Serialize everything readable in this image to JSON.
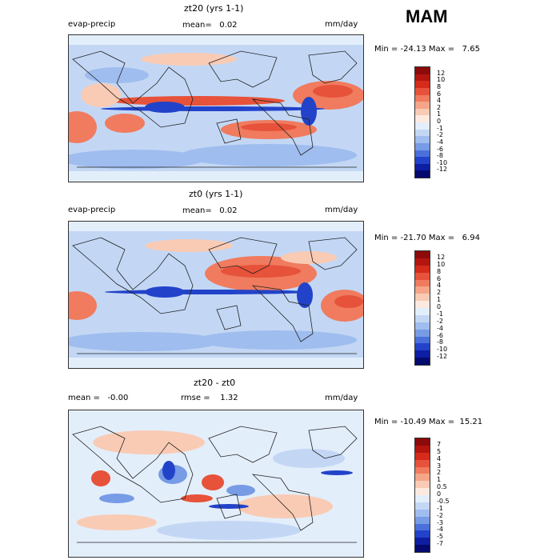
{
  "season": "MAM",
  "panels": [
    {
      "title": "zt20 (yrs 1-1)",
      "left_label": "evap-precip",
      "center_label": "mean=   0.02",
      "units": "mm/day",
      "minmax": "Min = -24.13 Max =   7.65",
      "colorbar_labels": [
        "12",
        "10",
        "8",
        "6",
        "4",
        "2",
        "1",
        "0",
        "-1",
        "-2",
        "-4",
        "-6",
        "-8",
        "-10",
        "-12"
      ],
      "colors": [
        "#8c0a0a",
        "#b3160f",
        "#d42b1b",
        "#e7523a",
        "#f07b5e",
        "#f5a588",
        "#f9cbb4",
        "#fde9df",
        "#e3eefb",
        "#c3d7f5",
        "#9fbdee",
        "#779be5",
        "#4b70dc",
        "#2243c9",
        "#0d1ea3",
        "#050a6e"
      ]
    },
    {
      "title": "zt0 (yrs 1-1)",
      "left_label": "evap-precip",
      "center_label": "mean=   0.02",
      "units": "mm/day",
      "minmax": "Min = -21.70 Max =   6.94",
      "colorbar_labels": [
        "12",
        "10",
        "8",
        "6",
        "4",
        "2",
        "1",
        "0",
        "-1",
        "-2",
        "-4",
        "-6",
        "-8",
        "-10",
        "-12"
      ],
      "colors": [
        "#8c0a0a",
        "#b3160f",
        "#d42b1b",
        "#e7523a",
        "#f07b5e",
        "#f5a588",
        "#f9cbb4",
        "#fde9df",
        "#e3eefb",
        "#c3d7f5",
        "#9fbdee",
        "#779be5",
        "#4b70dc",
        "#2243c9",
        "#0d1ea3",
        "#050a6e"
      ]
    },
    {
      "title": "zt20 - zt0",
      "left_label": "mean =   -0.00",
      "center_label": "rmse =    1.32",
      "units": "mm/day",
      "minmax": "Min = -10.49 Max =  15.21",
      "colorbar_labels": [
        "7",
        "5",
        "4",
        "3",
        "2",
        "1",
        "0.5",
        "0",
        "-0.5",
        "-1",
        "-2",
        "-3",
        "-4",
        "-5",
        "-7"
      ],
      "colors": [
        "#8c0a0a",
        "#b3160f",
        "#d42b1b",
        "#e7523a",
        "#f07b5e",
        "#f5a588",
        "#f9cbb4",
        "#fde9df",
        "#e3eefb",
        "#c3d7f5",
        "#9fbdee",
        "#779be5",
        "#4b70dc",
        "#2243c9",
        "#0d1ea3",
        "#050a6e"
      ]
    }
  ]
}
